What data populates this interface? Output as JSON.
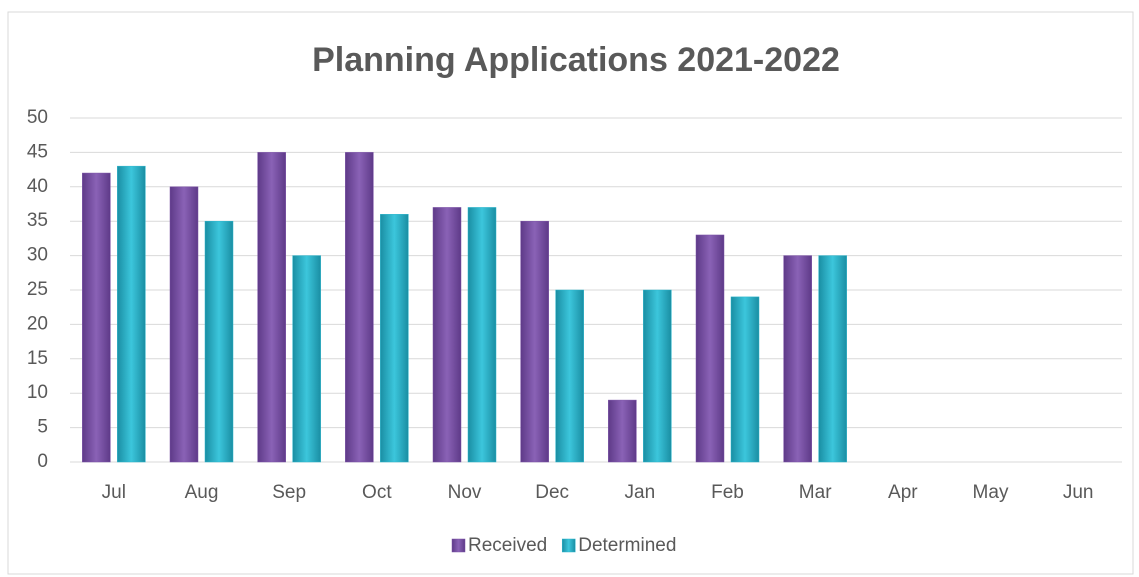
{
  "chart_data": {
    "type": "bar",
    "title": "Planning Applications 2021-2022",
    "categories": [
      "Jul",
      "Aug",
      "Sep",
      "Oct",
      "Nov",
      "Dec",
      "Jan",
      "Feb",
      "Mar",
      "Apr",
      "May",
      "Jun"
    ],
    "series": [
      {
        "name": "Received",
        "color": "#7b52a6",
        "values": [
          42,
          40,
          45,
          45,
          37,
          35,
          9,
          33,
          30,
          null,
          null,
          null
        ]
      },
      {
        "name": "Determined",
        "color": "#2bb5cc",
        "values": [
          43,
          35,
          30,
          36,
          37,
          25,
          25,
          24,
          30,
          null,
          null,
          null
        ]
      }
    ],
    "ylim": [
      0,
      50
    ],
    "yticks": [
      0,
      5,
      10,
      15,
      20,
      25,
      30,
      35,
      40,
      45,
      50
    ],
    "grid": true,
    "legend": "bottom"
  }
}
